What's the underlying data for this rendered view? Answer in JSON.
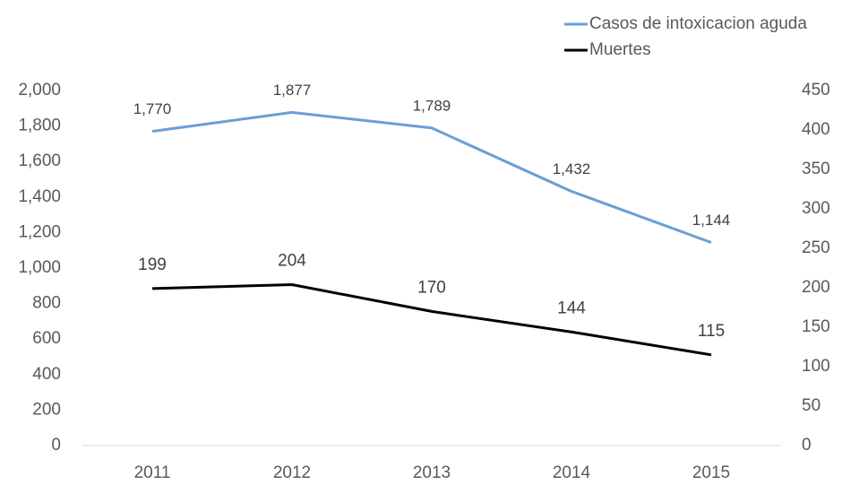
{
  "chart_data": {
    "type": "line",
    "categories": [
      "2011",
      "2012",
      "2013",
      "2014",
      "2015"
    ],
    "series": [
      {
        "name": "Casos de intoxicacion aguda",
        "color": "#6a9fd6",
        "axis": "y",
        "values": [
          1770,
          1877,
          1789,
          1432,
          1144
        ],
        "value_labels": [
          "1,770",
          "1,877",
          "1,789",
          "1,432",
          "1,144"
        ]
      },
      {
        "name": "Muertes",
        "color": "#000000",
        "axis": "y2",
        "values": [
          199,
          204,
          170,
          144,
          115
        ]
      }
    ],
    "ylim": [
      0,
      2000
    ],
    "yticks": [
      0,
      200,
      400,
      600,
      800,
      {
        "value": 1000,
        "label": "1,000"
      },
      {
        "value": 1200,
        "label": "1,200"
      },
      {
        "value": 1400,
        "label": "1,400"
      },
      {
        "value": 1600,
        "label": "1,600"
      },
      {
        "value": 1800,
        "label": "1,800"
      },
      {
        "value": 2000,
        "label": "2,000"
      }
    ],
    "y2lim": [
      0,
      450
    ],
    "y2ticks": [
      0,
      50,
      100,
      150,
      200,
      250,
      300,
      350,
      400,
      450
    ],
    "grid": false,
    "legend": "top-right"
  }
}
